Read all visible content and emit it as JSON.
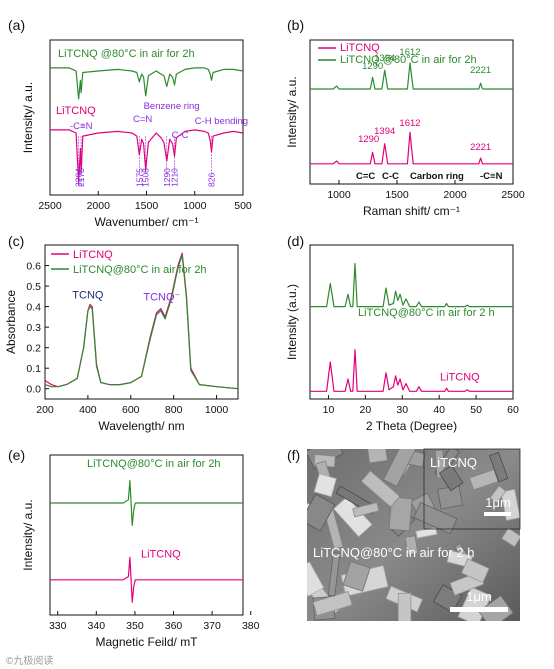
{
  "colors": {
    "pink": "#e2007a",
    "green": "#2d8a2d",
    "violet": "#8a2be2",
    "navy": "#1f2a7a",
    "black": "#111111"
  },
  "watermark": "©九极阅读",
  "panels": {
    "a": {
      "letter": "(a)",
      "xlabel": "Wavenumber/ cm⁻¹",
      "ylabel": "Intensity/ a.u.",
      "xticks": [
        "2500",
        "2000",
        "1500",
        "1000",
        "500"
      ],
      "series": [
        {
          "label": "LiTCNQ @80°C in air for 2h",
          "color": "#2d8a2d"
        },
        {
          "label": "LiTCNQ",
          "color": "#e2007a"
        }
      ],
      "groups": [
        "-C≡N",
        "C=N",
        "Benzene ring",
        "C-C",
        "C-H bending"
      ],
      "peaks": [
        "2204",
        "2178",
        "1575",
        "1508",
        "1290",
        "1210",
        "826"
      ]
    },
    "b": {
      "letter": "(b)",
      "xlabel": "Raman shift/ cm⁻¹",
      "ylabel": "Intensity/ a.u.",
      "xticks": [
        "1000",
        "1500",
        "2000",
        "2500"
      ],
      "legend": [
        {
          "label": "LiTCNQ",
          "color": "#e2007a"
        },
        {
          "label": "LiTCNQ @80°C in air for 2h",
          "color": "#2d8a2d"
        }
      ],
      "peaks_top": [
        "1290",
        "1394",
        "1612",
        "2221"
      ],
      "peaks_bottom": [
        "1290",
        "1394",
        "1612",
        "2221"
      ],
      "groups": [
        "C=C",
        "C-C",
        "Carbon ring",
        "-C≡N"
      ]
    },
    "c": {
      "letter": "(c)",
      "xlabel": "Wavelength/ nm",
      "ylabel": "Absorbance",
      "xticks": [
        "200",
        "400",
        "600",
        "800",
        "1000"
      ],
      "yticks": [
        "0.0",
        "0.1",
        "0.2",
        "0.3",
        "0.4",
        "0.5",
        "0.6"
      ],
      "legend": [
        {
          "label": "LiTCNQ",
          "color": "#e2007a"
        },
        {
          "label": "LiTCNQ@80°C in air for 2h",
          "color": "#2d8a2d"
        }
      ],
      "band_labels": [
        "TCNQ",
        "TCNQ⁻"
      ]
    },
    "d": {
      "letter": "(d)",
      "xlabel": "2 Theta (Degree)",
      "ylabel": "Intensity (a.u.)",
      "xticks": [
        "10",
        "20",
        "30",
        "40",
        "50",
        "60"
      ],
      "series": [
        {
          "label": "LiTCNQ@80°C in air for 2 h",
          "color": "#2d8a2d"
        },
        {
          "label": "LiTCNQ",
          "color": "#e2007a"
        }
      ]
    },
    "e": {
      "letter": "(e)",
      "xlabel": "Magnetic Feild/ mT",
      "ylabel": "Intensity/ a.u.",
      "xticks": [
        "330",
        "340",
        "350",
        "360",
        "370",
        "380"
      ],
      "series": [
        {
          "label": "LiTCNQ@80°C in air for 2h",
          "color": "#2d8a2d"
        },
        {
          "label": "LiTCNQ",
          "color": "#e2007a"
        }
      ]
    },
    "f": {
      "letter": "(f)",
      "label_top": "LiTCNQ",
      "scalebar_small": "1μm",
      "label_bottom": "LiTCNQ@80°C in air for 2 h",
      "scalebar_large": "1μm"
    }
  },
  "chart_data": [
    {
      "panel": "a",
      "type": "line",
      "xlabel": "Wavenumber/ cm⁻¹",
      "ylabel": "Intensity/ a.u.",
      "xlim": [
        2500,
        500
      ],
      "reversed_x": true,
      "series": [
        {
          "name": "LiTCNQ @80°C in air for 2h",
          "x": [
            2500,
            2300,
            2230,
            2204,
            2185,
            2178,
            2160,
            2000,
            1800,
            1650,
            1600,
            1575,
            1550,
            1530,
            1508,
            1480,
            1400,
            1350,
            1320,
            1290,
            1260,
            1230,
            1210,
            1190,
            1100,
            1000,
            900,
            860,
            840,
            826,
            810,
            700,
            600,
            500
          ],
          "y": [
            0.82,
            0.82,
            0.8,
            0.62,
            0.74,
            0.66,
            0.79,
            0.8,
            0.81,
            0.8,
            0.79,
            0.73,
            0.78,
            0.76,
            0.64,
            0.77,
            0.8,
            0.78,
            0.77,
            0.7,
            0.78,
            0.76,
            0.71,
            0.78,
            0.81,
            0.82,
            0.82,
            0.81,
            0.78,
            0.74,
            0.79,
            0.81,
            0.81,
            0.8
          ]
        },
        {
          "name": "LiTCNQ",
          "x": [
            2500,
            2300,
            2230,
            2204,
            2185,
            2178,
            2160,
            2000,
            1800,
            1650,
            1600,
            1575,
            1550,
            1530,
            1508,
            1480,
            1400,
            1350,
            1320,
            1290,
            1260,
            1230,
            1210,
            1190,
            1100,
            1000,
            900,
            860,
            840,
            826,
            810,
            700,
            600,
            500
          ],
          "y": [
            0.42,
            0.42,
            0.4,
            0.08,
            0.3,
            0.14,
            0.38,
            0.4,
            0.41,
            0.4,
            0.38,
            0.26,
            0.36,
            0.33,
            0.16,
            0.34,
            0.4,
            0.37,
            0.34,
            0.22,
            0.36,
            0.33,
            0.25,
            0.37,
            0.41,
            0.42,
            0.41,
            0.4,
            0.35,
            0.28,
            0.38,
            0.4,
            0.41,
            0.4
          ]
        }
      ]
    },
    {
      "panel": "b",
      "type": "line",
      "xlabel": "Raman shift/ cm⁻¹",
      "ylabel": "Intensity/ a.u.",
      "xlim": [
        750,
        2500
      ],
      "series": [
        {
          "name": "LiTCNQ @80°C in air for 2h",
          "x": [
            750,
            950,
            980,
            1000,
            1200,
            1270,
            1290,
            1310,
            1370,
            1394,
            1420,
            1590,
            1612,
            1640,
            2000,
            2205,
            2221,
            2237,
            2500
          ],
          "y": [
            0.66,
            0.66,
            0.68,
            0.66,
            0.66,
            0.66,
            0.74,
            0.66,
            0.66,
            0.79,
            0.66,
            0.66,
            0.84,
            0.66,
            0.66,
            0.66,
            0.7,
            0.66,
            0.66
          ]
        },
        {
          "name": "LiTCNQ",
          "x": [
            750,
            950,
            980,
            1000,
            1200,
            1270,
            1290,
            1310,
            1370,
            1394,
            1420,
            1590,
            1612,
            1640,
            2000,
            2205,
            2221,
            2237,
            2500
          ],
          "y": [
            0.14,
            0.14,
            0.16,
            0.14,
            0.14,
            0.14,
            0.22,
            0.14,
            0.14,
            0.28,
            0.14,
            0.14,
            0.36,
            0.14,
            0.14,
            0.14,
            0.18,
            0.14,
            0.14
          ]
        }
      ]
    },
    {
      "panel": "c",
      "type": "line",
      "xlabel": "Wavelength/ nm",
      "ylabel": "Absorbance",
      "xlim": [
        200,
        1100
      ],
      "ylim": [
        -0.05,
        0.7
      ],
      "series": [
        {
          "name": "LiTCNQ",
          "x": [
            200,
            230,
            260,
            300,
            350,
            380,
            400,
            410,
            420,
            440,
            460,
            500,
            550,
            600,
            650,
            690,
            720,
            740,
            760,
            790,
            820,
            840,
            860,
            880,
            920,
            1000,
            1100
          ],
          "y": [
            0.04,
            0.02,
            0.01,
            0.02,
            0.05,
            0.2,
            0.38,
            0.41,
            0.4,
            0.12,
            0.03,
            0.02,
            0.02,
            0.03,
            0.06,
            0.25,
            0.37,
            0.39,
            0.35,
            0.45,
            0.6,
            0.66,
            0.45,
            0.1,
            0.02,
            0.01,
            0.0
          ]
        },
        {
          "name": "LiTCNQ@80°C in air for 2h",
          "x": [
            200,
            230,
            260,
            300,
            350,
            380,
            400,
            410,
            420,
            440,
            460,
            500,
            550,
            600,
            650,
            690,
            720,
            740,
            760,
            790,
            820,
            840,
            860,
            880,
            920,
            1000,
            1100
          ],
          "y": [
            0.02,
            0.01,
            0.01,
            0.02,
            0.05,
            0.2,
            0.38,
            0.4,
            0.39,
            0.11,
            0.03,
            0.02,
            0.02,
            0.03,
            0.06,
            0.24,
            0.36,
            0.38,
            0.34,
            0.44,
            0.59,
            0.65,
            0.44,
            0.09,
            0.02,
            0.01,
            0.0
          ]
        }
      ]
    },
    {
      "panel": "d",
      "type": "line",
      "xlabel": "2 Theta (Degree)",
      "ylabel": "Intensity (a.u.)",
      "xlim": [
        5,
        60
      ],
      "series": [
        {
          "name": "LiTCNQ@80°C in air for 2 h",
          "x": [
            5,
            9.5,
            10.5,
            11.5,
            14.5,
            15.3,
            16.0,
            16.6,
            17.2,
            17.8,
            20,
            24.8,
            25.6,
            26.4,
            27.6,
            28.2,
            28.8,
            29.4,
            30.2,
            31.0,
            32,
            33.8,
            34.5,
            35.2,
            38,
            41.5,
            42,
            42.5,
            47,
            47.6,
            48.2,
            60
          ],
          "y": [
            0.6,
            0.6,
            0.75,
            0.6,
            0.6,
            0.68,
            0.6,
            0.6,
            0.88,
            0.6,
            0.6,
            0.6,
            0.72,
            0.61,
            0.62,
            0.7,
            0.64,
            0.68,
            0.61,
            0.65,
            0.6,
            0.6,
            0.63,
            0.6,
            0.6,
            0.6,
            0.62,
            0.6,
            0.6,
            0.61,
            0.6,
            0.6
          ]
        },
        {
          "name": "LiTCNQ",
          "x": [
            5,
            9.5,
            10.5,
            11.5,
            14.5,
            15.3,
            16.0,
            16.6,
            17.2,
            17.8,
            20,
            24.8,
            25.6,
            26.4,
            27.6,
            28.2,
            28.8,
            29.4,
            30.2,
            31.0,
            32,
            33.8,
            34.5,
            35.2,
            38,
            41.5,
            42,
            42.5,
            47,
            47.6,
            48.2,
            60
          ],
          "y": [
            0.05,
            0.05,
            0.24,
            0.05,
            0.05,
            0.13,
            0.05,
            0.05,
            0.32,
            0.05,
            0.05,
            0.05,
            0.17,
            0.06,
            0.08,
            0.15,
            0.09,
            0.13,
            0.06,
            0.1,
            0.05,
            0.05,
            0.08,
            0.05,
            0.05,
            0.05,
            0.07,
            0.05,
            0.05,
            0.06,
            0.05,
            0.05
          ]
        }
      ]
    },
    {
      "panel": "e",
      "type": "line",
      "xlabel": "Magnetic Feild/ mT",
      "ylabel": "Intensity/ a.u.",
      "xlim": [
        328,
        378
      ],
      "series": [
        {
          "name": "LiTCNQ@80°C in air for 2h",
          "x": [
            328,
            347,
            348.3,
            348.7,
            349.0,
            349.3,
            349.7,
            350.1,
            352,
            378
          ],
          "y": [
            0.7,
            0.7,
            0.72,
            0.84,
            0.7,
            0.56,
            0.66,
            0.7,
            0.7,
            0.7
          ]
        },
        {
          "name": "LiTCNQ",
          "x": [
            328,
            347,
            348.3,
            348.7,
            349.0,
            349.3,
            349.7,
            350.1,
            352,
            378
          ],
          "y": [
            0.22,
            0.22,
            0.24,
            0.36,
            0.22,
            0.08,
            0.18,
            0.22,
            0.22,
            0.22
          ]
        }
      ]
    }
  ]
}
